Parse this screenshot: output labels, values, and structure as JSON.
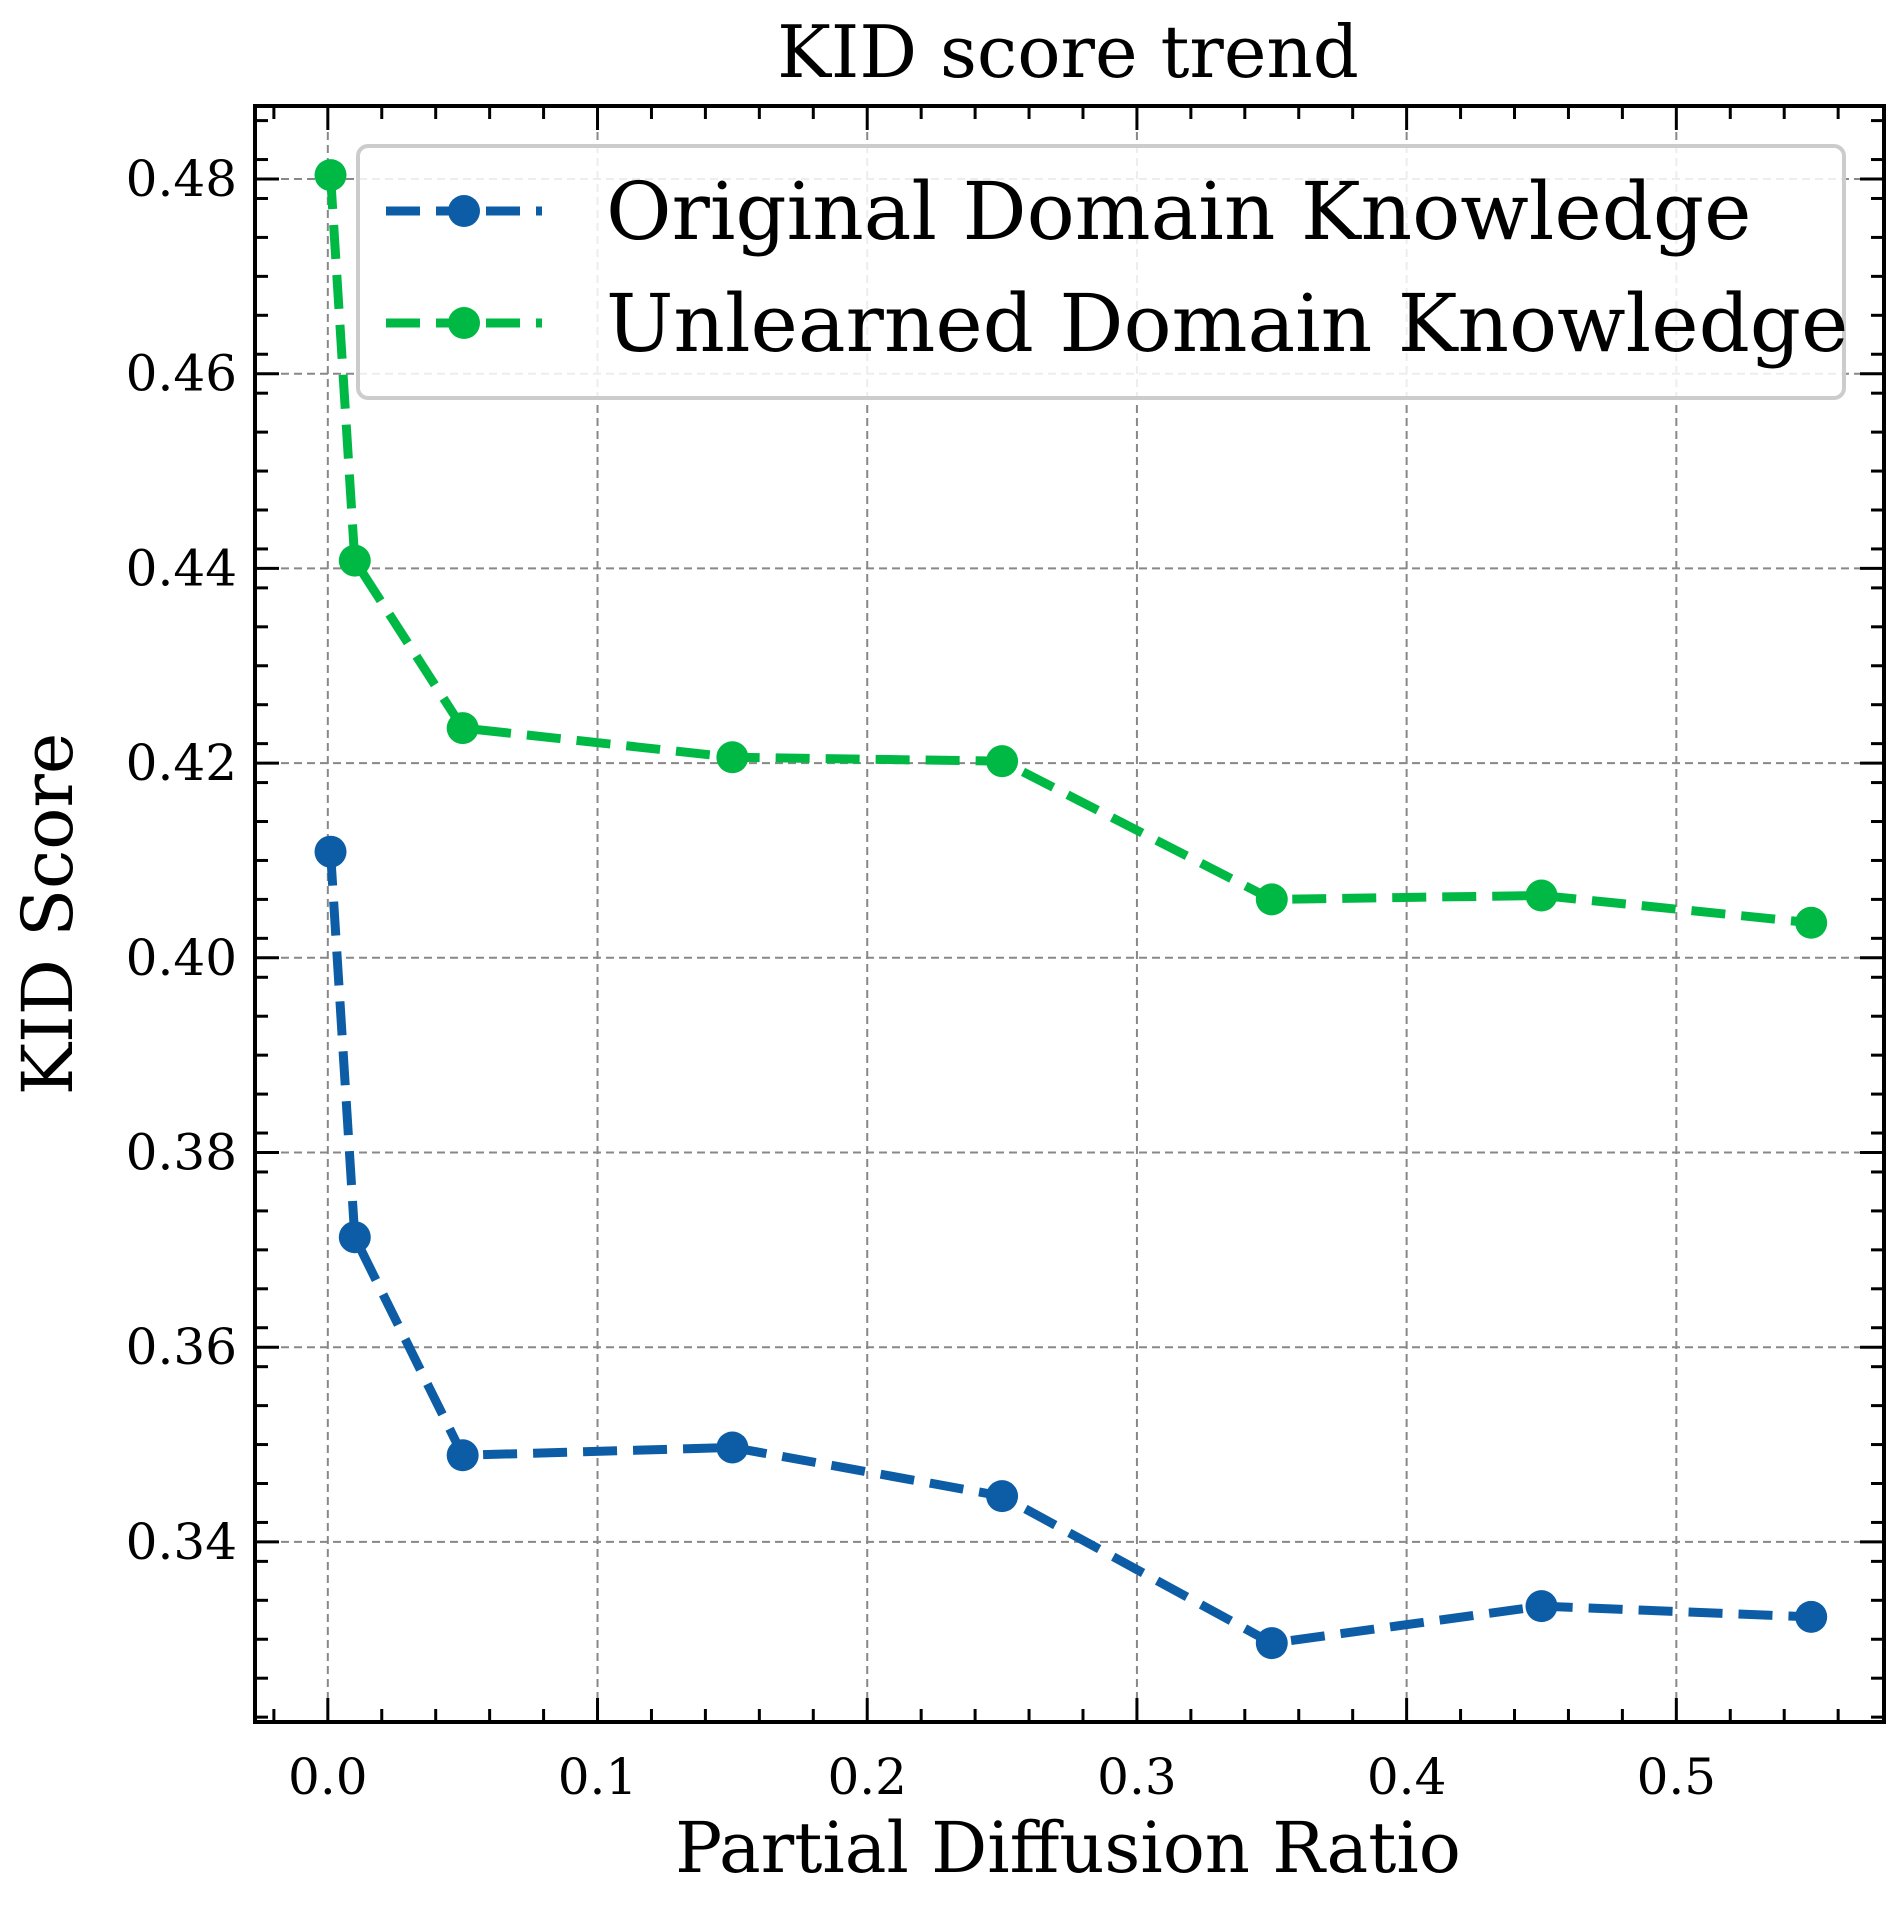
{
  "chart_data": {
    "type": "line",
    "title": "KID score trend",
    "xlabel": "Partial Diffusion Ratio",
    "ylabel": "KID Score",
    "xlim": [
      -0.027,
      0.577
    ],
    "ylim": [
      0.3215,
      0.4875
    ],
    "x_ticks": [
      0.0,
      0.1,
      0.2,
      0.3,
      0.4,
      0.5
    ],
    "x_tick_labels": [
      "0.0",
      "0.1",
      "0.2",
      "0.3",
      "0.4",
      "0.5"
    ],
    "y_ticks": [
      0.34,
      0.36,
      0.38,
      0.4,
      0.42,
      0.44,
      0.46,
      0.48
    ],
    "y_tick_labels": [
      "0.34",
      "0.36",
      "0.38",
      "0.40",
      "0.42",
      "0.44",
      "0.46",
      "0.48"
    ],
    "grid": true,
    "legend_position": "top-right",
    "x": [
      0.001,
      0.01,
      0.05,
      0.15,
      0.25,
      0.35,
      0.45,
      0.55
    ],
    "series": [
      {
        "name": "Original Domain Knowledge",
        "color": "#0C5DA5",
        "values": [
          0.4109,
          0.3713,
          0.3489,
          0.3497,
          0.3447,
          0.3296,
          0.3334,
          0.3323
        ]
      },
      {
        "name": "Unlearned Domain Knowledge",
        "color": "#00B945",
        "values": [
          0.4804,
          0.4408,
          0.4236,
          0.4206,
          0.4202,
          0.406,
          0.4064,
          0.4036
        ]
      }
    ]
  }
}
